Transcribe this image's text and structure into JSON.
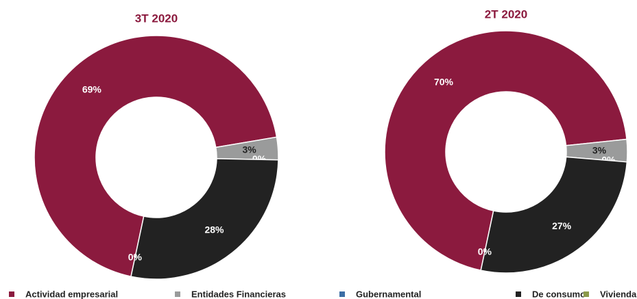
{
  "legend": {
    "categories": [
      "Actividad empresarial",
      "Entidades Financieras",
      "Gubernamental",
      "De consumo",
      "Vivienda"
    ],
    "colors": [
      "#8b1a3e",
      "#9a9b9b",
      "#3c6ea5",
      "#222222",
      "#8c9a4a"
    ]
  },
  "chart_data": [
    {
      "type": "pie",
      "title": "3T 2020",
      "values": [
        69,
        3,
        0,
        28,
        0
      ],
      "value_labels": [
        "69%",
        "3%",
        "0%",
        "28%",
        "0%"
      ]
    },
    {
      "type": "pie",
      "title": "2T 2020",
      "values": [
        70,
        3,
        0,
        27,
        0
      ],
      "value_labels": [
        "70%",
        "3%",
        "0%",
        "27%",
        "0%"
      ]
    }
  ]
}
